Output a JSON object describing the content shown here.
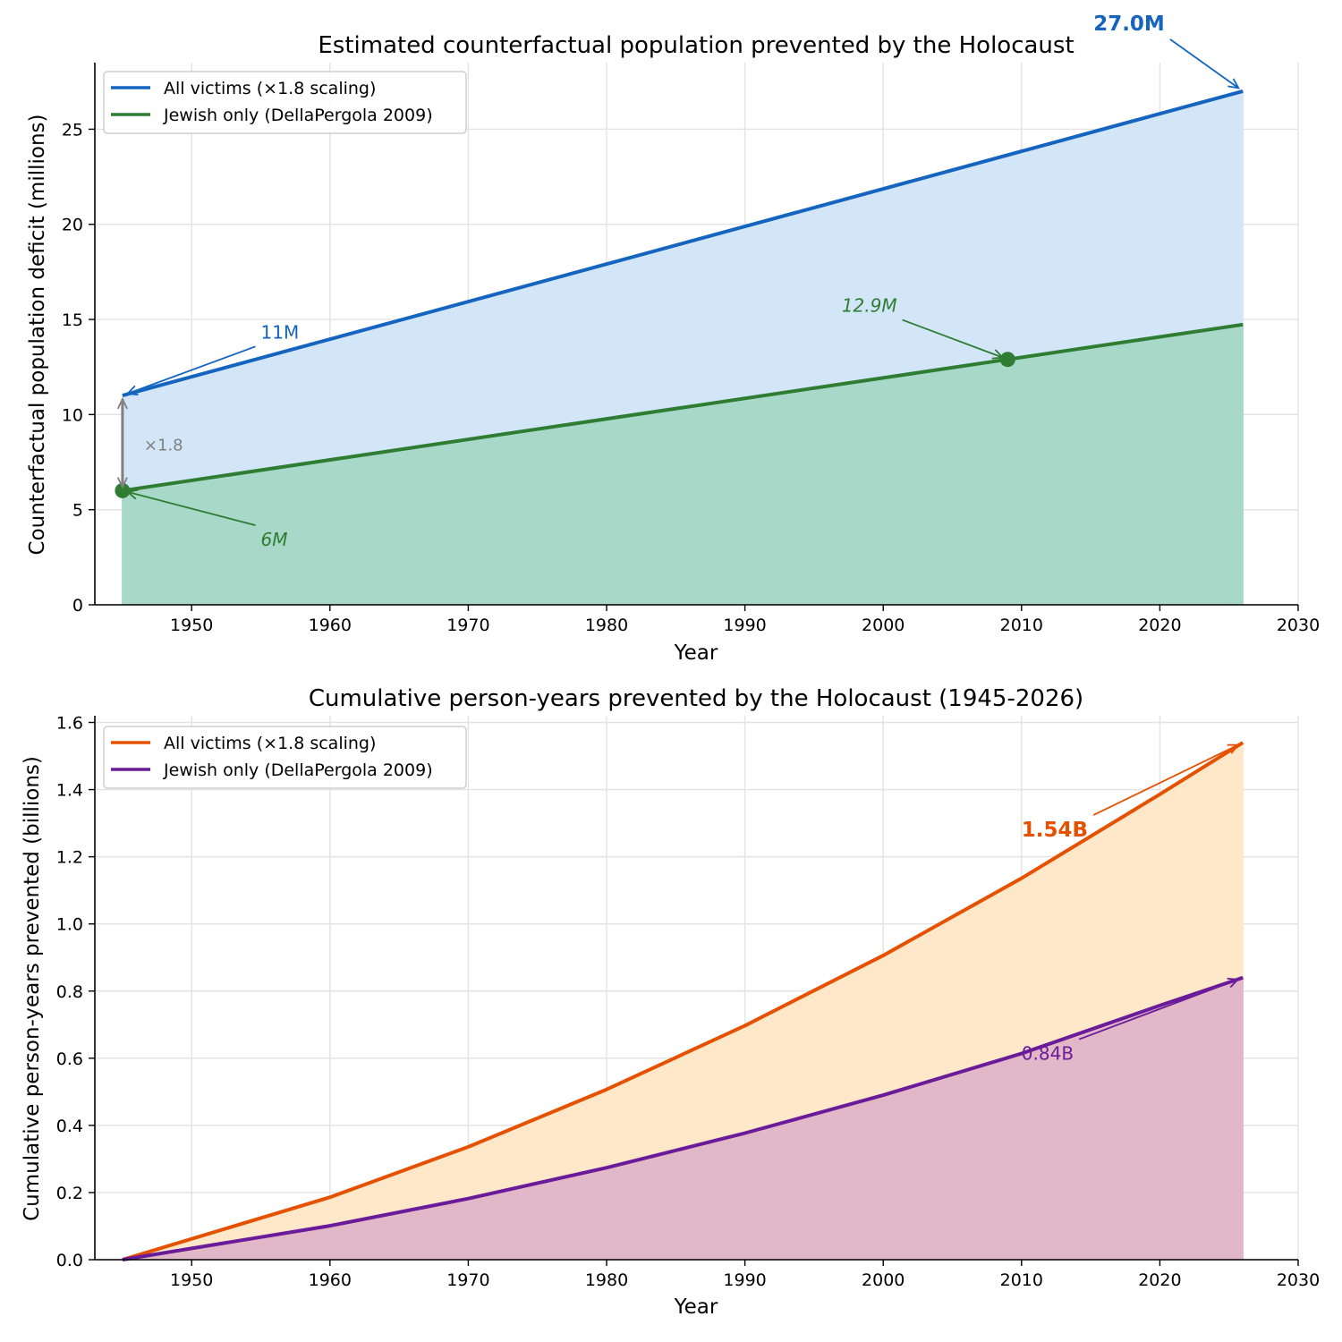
{
  "colors": {
    "blue": "#1565c0",
    "blue_fill": "#d2e6f8",
    "green": "#2e7d32",
    "green_fill": "#a8d8c8",
    "orange": "#e65100",
    "orange_fill": "#fee8c9",
    "purple": "#6a1b9a",
    "purple_fill": "#e2b7c7",
    "scale_arrow": "#808080"
  },
  "chart_data": [
    {
      "type": "area",
      "title": "Estimated counterfactual population prevented by the Holocaust",
      "xlabel": "Year",
      "ylabel": "Counterfactual population deficit (millions)",
      "xlim": [
        1943,
        2030
      ],
      "ylim": [
        0,
        28.5
      ],
      "xticks": [
        1950,
        1960,
        1970,
        1980,
        1990,
        2000,
        2010,
        2020,
        2030
      ],
      "yticks": [
        0,
        5,
        10,
        15,
        20,
        25
      ],
      "grid": true,
      "legend_position": "top-left",
      "series": [
        {
          "name": "All victims (×1.8 scaling)",
          "color": "#1565c0",
          "fill": "#d2e6f8",
          "x": [
            1945,
            2026
          ],
          "values": [
            11.0,
            27.0
          ]
        },
        {
          "name": "Jewish only (DellaPergola 2009)",
          "color": "#2e7d32",
          "fill": "#a8d8c8",
          "x": [
            1945,
            2009,
            2026
          ],
          "values": [
            6.0,
            12.9,
            14.73
          ]
        }
      ],
      "markers": [
        {
          "x": 1945,
          "y": 6.0,
          "color": "#2e7d32"
        },
        {
          "x": 2009,
          "y": 12.9,
          "color": "#2e7d32"
        }
      ],
      "annotations": [
        {
          "text": "27.0M",
          "point": [
            2026,
            27.0
          ],
          "text_at": [
            2015.2,
            30.2
          ],
          "color": "#1565c0",
          "bold": true,
          "italic": false
        },
        {
          "text": "11M",
          "point": [
            1945,
            11.0
          ],
          "text_at": [
            1955,
            14.0
          ],
          "color": "#1565c0",
          "bold": false,
          "italic": false
        },
        {
          "text": "12.9M",
          "point": [
            2009,
            12.9
          ],
          "text_at": [
            1997,
            15.4
          ],
          "color": "#2e7d32",
          "bold": false,
          "italic": true
        },
        {
          "text": "6M",
          "point": [
            1945,
            6.0
          ],
          "text_at": [
            1955,
            3.1
          ],
          "color": "#2e7d32",
          "bold": false,
          "italic": true
        }
      ],
      "scale_marker": {
        "text": "×1.8",
        "x": 1945,
        "from": 6.0,
        "to": 11.0,
        "color": "#808080"
      }
    },
    {
      "type": "area",
      "title": "Cumulative person-years prevented by the Holocaust (1945-2026)",
      "xlabel": "Year",
      "ylabel": "Cumulative person-years prevented (billions)",
      "xlim": [
        1943,
        2030
      ],
      "ylim": [
        0,
        1.62
      ],
      "xticks": [
        1950,
        1960,
        1970,
        1980,
        1990,
        2000,
        2010,
        2020,
        2030
      ],
      "yticks": [
        0.0,
        0.2,
        0.4,
        0.6,
        0.8,
        1.0,
        1.2,
        1.4,
        1.6
      ],
      "ytick_labels": [
        "0.0",
        "0.2",
        "0.4",
        "0.6",
        "0.8",
        "1.0",
        "1.2",
        "1.4",
        "1.6"
      ],
      "grid": true,
      "legend_position": "top-left",
      "series": [
        {
          "name": "All victims (×1.8 scaling)",
          "color": "#e65100",
          "fill": "#fee8c9",
          "x": [
            1945,
            1960,
            1970,
            1980,
            1990,
            2000,
            2010,
            2020,
            2026
          ],
          "values": [
            0,
            0.186,
            0.336,
            0.507,
            0.697,
            0.906,
            1.136,
            1.386,
            1.54
          ]
        },
        {
          "name": "Jewish only (DellaPergola 2009)",
          "color": "#6a1b9a",
          "fill": "#e2b7c7",
          "x": [
            1945,
            1960,
            1970,
            1980,
            1990,
            2000,
            2010,
            2020,
            2026
          ],
          "values": [
            0,
            0.101,
            0.182,
            0.274,
            0.377,
            0.49,
            0.614,
            0.757,
            0.84
          ]
        }
      ],
      "annotations": [
        {
          "text": "1.54B",
          "point": [
            2026,
            1.54
          ],
          "text_at": [
            2010,
            1.26
          ],
          "color": "#e65100",
          "bold": true,
          "italic": false
        },
        {
          "text": "0.84B",
          "point": [
            2026,
            0.84
          ],
          "text_at": [
            2010,
            0.595
          ],
          "color": "#6a1b9a",
          "bold": false,
          "italic": false
        }
      ]
    }
  ]
}
